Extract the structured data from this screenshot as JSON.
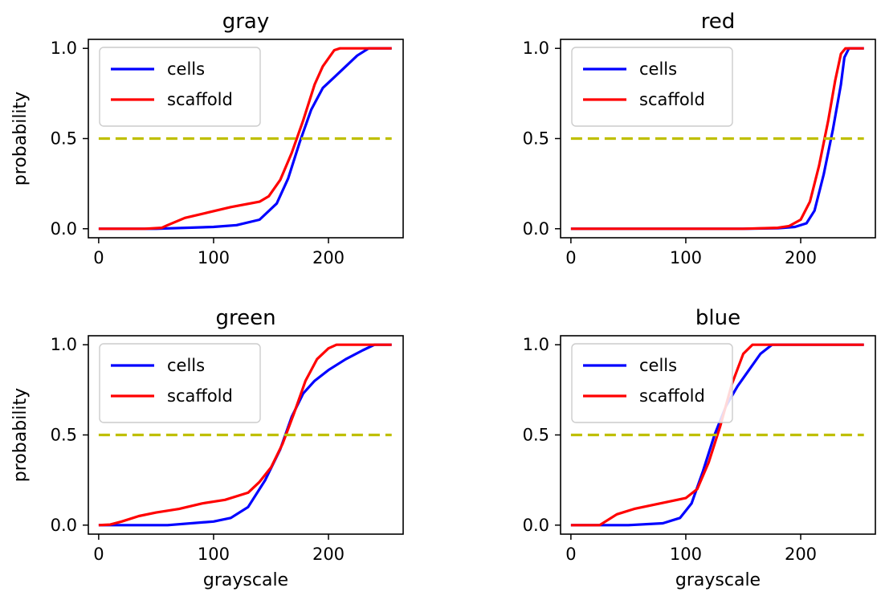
{
  "chart_data": [
    {
      "type": "line",
      "title": "gray",
      "xlabel": "",
      "ylabel": "probability",
      "xlim": [
        -9,
        265
      ],
      "ylim": [
        -0.05,
        1.05
      ],
      "xticks": [
        0,
        100,
        200
      ],
      "yticks": [
        0.0,
        0.5,
        1.0
      ],
      "legend": "upper-left",
      "series": [
        {
          "name": "cells",
          "color": "#0000ff",
          "x": [
            0,
            50,
            100,
            120,
            140,
            155,
            165,
            175,
            185,
            195,
            205,
            215,
            225,
            235,
            255
          ],
          "y": [
            0,
            0,
            0.01,
            0.02,
            0.05,
            0.14,
            0.28,
            0.48,
            0.66,
            0.78,
            0.84,
            0.9,
            0.96,
            1.0,
            1.0
          ]
        },
        {
          "name": "scaffold",
          "color": "#ff0000",
          "x": [
            0,
            40,
            55,
            60,
            75,
            95,
            115,
            140,
            148,
            158,
            168,
            178,
            188,
            195,
            205,
            210,
            255
          ],
          "y": [
            0,
            0,
            0.005,
            0.02,
            0.06,
            0.09,
            0.12,
            0.15,
            0.18,
            0.27,
            0.42,
            0.6,
            0.8,
            0.9,
            0.99,
            1.0,
            1.0
          ]
        },
        {
          "name": "",
          "color": "#bfbf00",
          "dashed": true,
          "x": [
            0,
            255
          ],
          "y": [
            0.5,
            0.5
          ]
        }
      ]
    },
    {
      "type": "line",
      "title": "red",
      "xlabel": "",
      "ylabel": "",
      "xlim": [
        -9,
        265
      ],
      "ylim": [
        -0.05,
        1.05
      ],
      "xticks": [
        0,
        100,
        200
      ],
      "yticks": [
        0.0,
        0.5,
        1.0
      ],
      "legend": "upper-left",
      "series": [
        {
          "name": "cells",
          "color": "#0000ff",
          "x": [
            0,
            150,
            180,
            195,
            205,
            212,
            220,
            228,
            235,
            238,
            242,
            255
          ],
          "y": [
            0,
            0,
            0.003,
            0.01,
            0.03,
            0.1,
            0.3,
            0.55,
            0.8,
            0.95,
            1.0,
            1.0
          ]
        },
        {
          "name": "scaffold",
          "color": "#ff0000",
          "x": [
            0,
            150,
            180,
            190,
            200,
            208,
            216,
            224,
            230,
            235,
            239,
            255
          ],
          "y": [
            0,
            0,
            0.005,
            0.015,
            0.05,
            0.15,
            0.35,
            0.6,
            0.82,
            0.97,
            1.0,
            1.0
          ]
        },
        {
          "name": "",
          "color": "#bfbf00",
          "dashed": true,
          "x": [
            0,
            255
          ],
          "y": [
            0.5,
            0.5
          ]
        }
      ]
    },
    {
      "type": "line",
      "title": "green",
      "xlabel": "grayscale",
      "ylabel": "probability",
      "xlim": [
        -9,
        265
      ],
      "ylim": [
        -0.05,
        1.05
      ],
      "xticks": [
        0,
        100,
        200
      ],
      "yticks": [
        0.0,
        0.5,
        1.0
      ],
      "legend": "upper-left",
      "series": [
        {
          "name": "cells",
          "color": "#0000ff",
          "x": [
            0,
            60,
            100,
            115,
            130,
            145,
            158,
            168,
            178,
            188,
            200,
            215,
            230,
            240,
            255
          ],
          "y": [
            0,
            0,
            0.02,
            0.04,
            0.1,
            0.25,
            0.42,
            0.6,
            0.73,
            0.8,
            0.86,
            0.92,
            0.97,
            1.0,
            1.0
          ]
        },
        {
          "name": "scaffold",
          "color": "#ff0000",
          "x": [
            0,
            10,
            20,
            35,
            50,
            70,
            90,
            110,
            130,
            140,
            150,
            160,
            170,
            180,
            190,
            200,
            207,
            255
          ],
          "y": [
            0,
            0.003,
            0.02,
            0.05,
            0.07,
            0.09,
            0.12,
            0.14,
            0.18,
            0.24,
            0.32,
            0.45,
            0.62,
            0.8,
            0.92,
            0.98,
            1.0,
            1.0
          ]
        },
        {
          "name": "",
          "color": "#bfbf00",
          "dashed": true,
          "x": [
            0,
            255
          ],
          "y": [
            0.5,
            0.5
          ]
        }
      ]
    },
    {
      "type": "line",
      "title": "blue",
      "xlabel": "grayscale",
      "ylabel": "",
      "xlim": [
        -9,
        265
      ],
      "ylim": [
        -0.05,
        1.05
      ],
      "xticks": [
        0,
        100,
        200
      ],
      "yticks": [
        0.0,
        0.5,
        1.0
      ],
      "legend": "upper-left",
      "series": [
        {
          "name": "cells",
          "color": "#0000ff",
          "x": [
            0,
            50,
            80,
            95,
            105,
            115,
            125,
            135,
            145,
            155,
            165,
            175,
            255
          ],
          "y": [
            0,
            0,
            0.01,
            0.04,
            0.12,
            0.3,
            0.5,
            0.66,
            0.77,
            0.86,
            0.95,
            1.0,
            1.0
          ]
        },
        {
          "name": "scaffold",
          "color": "#ff0000",
          "x": [
            0,
            25,
            30,
            40,
            55,
            70,
            85,
            100,
            110,
            120,
            130,
            140,
            150,
            158,
            255
          ],
          "y": [
            0,
            0,
            0.02,
            0.06,
            0.09,
            0.11,
            0.13,
            0.15,
            0.2,
            0.35,
            0.55,
            0.78,
            0.95,
            1.0,
            1.0
          ]
        },
        {
          "name": "",
          "color": "#bfbf00",
          "dashed": true,
          "x": [
            0,
            255
          ],
          "y": [
            0.5,
            0.5
          ]
        }
      ]
    }
  ]
}
